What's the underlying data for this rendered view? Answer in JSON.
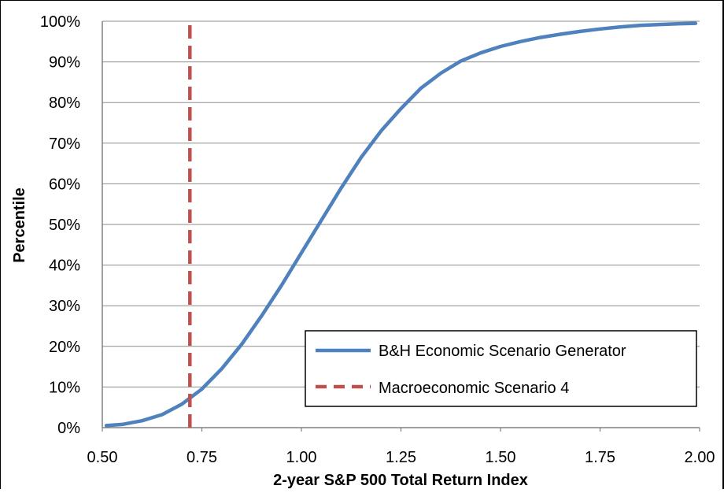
{
  "chart_data": {
    "type": "line",
    "xlabel": "2-year S&P 500 Total Return Index",
    "ylabel": "Percentile",
    "xlim": [
      0.5,
      2.0
    ],
    "ylim": [
      0,
      1
    ],
    "x_ticks": [
      "0.50",
      "0.75",
      "1.00",
      "1.25",
      "1.50",
      "1.75",
      "2.00"
    ],
    "y_ticks": [
      "0%",
      "10%",
      "20%",
      "30%",
      "40%",
      "50%",
      "60%",
      "70%",
      "80%",
      "90%",
      "100%"
    ],
    "grid": "horizontal",
    "legend_position": "bottom-right",
    "series": [
      {
        "name": "B&H Economic Scenario Generator",
        "color": "#4F81BD",
        "style": "solid",
        "points": [
          [
            0.51,
            0.005
          ],
          [
            0.55,
            0.008
          ],
          [
            0.6,
            0.017
          ],
          [
            0.65,
            0.032
          ],
          [
            0.7,
            0.058
          ],
          [
            0.75,
            0.095
          ],
          [
            0.8,
            0.145
          ],
          [
            0.85,
            0.205
          ],
          [
            0.9,
            0.275
          ],
          [
            0.95,
            0.35
          ],
          [
            1.0,
            0.43
          ],
          [
            1.05,
            0.51
          ],
          [
            1.1,
            0.59
          ],
          [
            1.15,
            0.665
          ],
          [
            1.2,
            0.73
          ],
          [
            1.25,
            0.785
          ],
          [
            1.3,
            0.835
          ],
          [
            1.35,
            0.872
          ],
          [
            1.4,
            0.902
          ],
          [
            1.45,
            0.922
          ],
          [
            1.5,
            0.938
          ],
          [
            1.55,
            0.95
          ],
          [
            1.6,
            0.96
          ],
          [
            1.65,
            0.968
          ],
          [
            1.7,
            0.975
          ],
          [
            1.75,
            0.981
          ],
          [
            1.8,
            0.986
          ],
          [
            1.85,
            0.99
          ],
          [
            1.9,
            0.992
          ],
          [
            1.95,
            0.994
          ],
          [
            1.99,
            0.995
          ]
        ]
      },
      {
        "name": "Macroeconomic Scenario 4",
        "color": "#C0504D",
        "style": "dashed",
        "points": [
          [
            0.72,
            0.0
          ],
          [
            0.72,
            1.0
          ]
        ]
      }
    ]
  }
}
